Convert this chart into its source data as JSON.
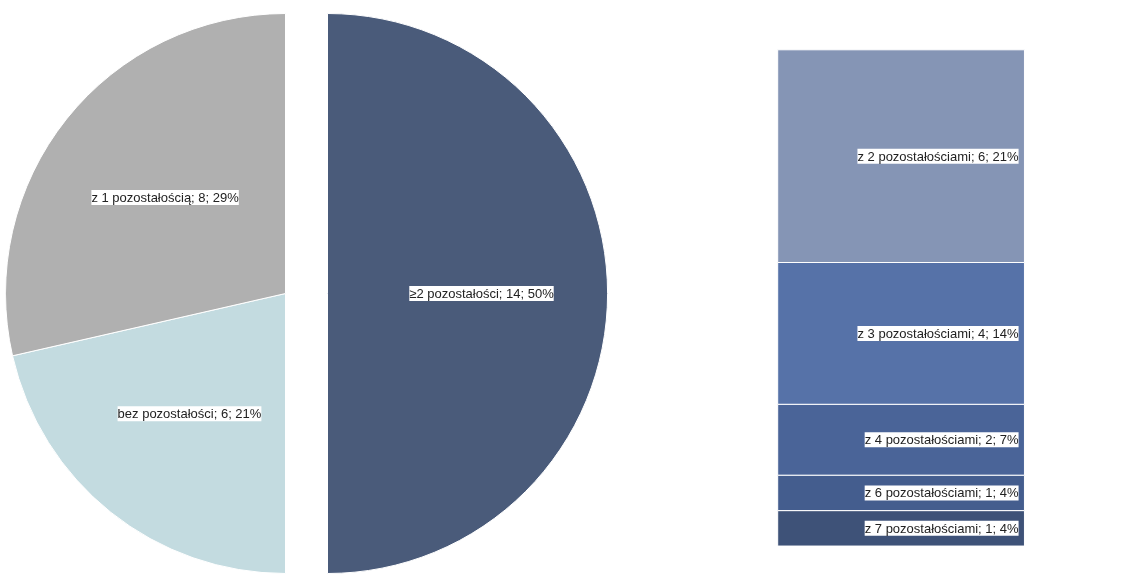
{
  "chart_data": [
    {
      "type": "pie",
      "categories": [
        "≥2 pozostałości",
        "bez pozostałości",
        "z 1 pozostałością"
      ],
      "values": [
        14,
        6,
        8
      ],
      "value_labels": [
        "14; 50%",
        "6; 21%",
        "8; 29%"
      ],
      "colors": [
        "#4a5b7a",
        "#c3dbe0",
        "#b0b0b0"
      ],
      "legend": false
    },
    {
      "type": "bar",
      "stacked": true,
      "categories": [
        null
      ],
      "legend": false,
      "series": [
        {
          "color": "#3e5278",
          "values": [
            1
          ],
          "value_labels": [
            "z 7 pozostałościami; 1; 4%"
          ]
        },
        {
          "color": "#445d8e",
          "values": [
            1
          ],
          "value_labels": [
            "z 6 pozostałościami; 1; 4%"
          ]
        },
        {
          "color": "#4a6498",
          "values": [
            2
          ],
          "value_labels": [
            "z 4 pozostałościami; 2; 7%"
          ]
        },
        {
          "color": "#5672a8",
          "values": [
            4
          ],
          "value_labels": [
            "z 3 pozostałościami; 4; 14%"
          ]
        },
        {
          "color": "#8595b5",
          "values": [
            6
          ],
          "value_labels": [
            "z 2 pozostałościami; 6; 21%"
          ]
        }
      ]
    }
  ]
}
